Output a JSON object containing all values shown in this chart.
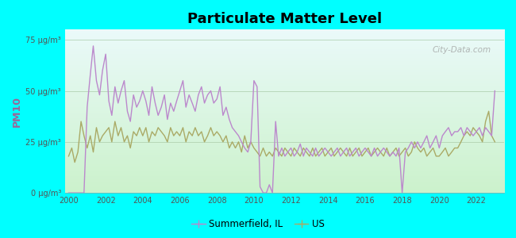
{
  "title": "Particulate Matter Level",
  "ylabel": "PM10",
  "background_color": "#00FFFF",
  "plot_bg_top": "#e8f8f8",
  "plot_bg_bottom": "#d8f0d0",
  "ylim": [
    0,
    80
  ],
  "yticks": [
    0,
    25,
    50,
    75
  ],
  "ytick_labels": [
    "0 μg/m³",
    "25 μg/m³",
    "50 μg/m³",
    "75 μg/m³"
  ],
  "xlim": [
    1999.8,
    2023.5
  ],
  "xticks": [
    2000,
    2002,
    2004,
    2006,
    2008,
    2010,
    2012,
    2014,
    2016,
    2018,
    2020,
    2022
  ],
  "color_summerfield": "#bb88cc",
  "color_us": "#aaaa66",
  "legend_label_summerfield": "Summerfield, IL",
  "legend_label_us": "US",
  "watermark": "City-Data.com",
  "summerfield_x": [
    2000.0,
    2000.17,
    2000.33,
    2000.5,
    2000.67,
    2000.83,
    2001.0,
    2001.17,
    2001.33,
    2001.5,
    2001.67,
    2001.83,
    2002.0,
    2002.17,
    2002.33,
    2002.5,
    2002.67,
    2002.83,
    2003.0,
    2003.17,
    2003.33,
    2003.5,
    2003.67,
    2003.83,
    2004.0,
    2004.17,
    2004.33,
    2004.5,
    2004.67,
    2004.83,
    2005.0,
    2005.17,
    2005.33,
    2005.5,
    2005.67,
    2005.83,
    2006.0,
    2006.17,
    2006.33,
    2006.5,
    2006.67,
    2006.83,
    2007.0,
    2007.17,
    2007.33,
    2007.5,
    2007.67,
    2007.83,
    2008.0,
    2008.17,
    2008.33,
    2008.5,
    2008.67,
    2008.83,
    2009.0,
    2009.17,
    2009.33,
    2009.5,
    2009.67,
    2009.83,
    2010.0,
    2010.17,
    2010.33,
    2010.5,
    2010.67,
    2010.83,
    2011.0,
    2011.17,
    2011.33,
    2011.5,
    2011.67,
    2011.83,
    2012.0,
    2012.17,
    2012.33,
    2012.5,
    2012.67,
    2012.83,
    2013.0,
    2013.17,
    2013.33,
    2013.5,
    2013.67,
    2013.83,
    2014.0,
    2014.17,
    2014.33,
    2014.5,
    2014.67,
    2014.83,
    2015.0,
    2015.17,
    2015.33,
    2015.5,
    2015.67,
    2015.83,
    2016.0,
    2016.17,
    2016.33,
    2016.5,
    2016.67,
    2016.83,
    2017.0,
    2017.17,
    2017.33,
    2017.5,
    2017.67,
    2017.83,
    2018.0,
    2018.17,
    2018.33,
    2018.5,
    2018.67,
    2018.83,
    2019.0,
    2019.17,
    2019.33,
    2019.5,
    2019.67,
    2019.83,
    2020.0,
    2020.17,
    2020.33,
    2020.5,
    2020.67,
    2020.83,
    2021.0,
    2021.17,
    2021.33,
    2021.5,
    2021.67,
    2021.83,
    2022.0,
    2022.17,
    2022.33,
    2022.5,
    2022.67,
    2022.83,
    2023.0
  ],
  "summerfield_y": [
    0,
    0,
    0,
    0,
    0,
    0,
    42,
    58,
    72,
    55,
    48,
    60,
    68,
    45,
    38,
    52,
    44,
    50,
    55,
    40,
    35,
    48,
    42,
    45,
    50,
    45,
    38,
    52,
    44,
    38,
    42,
    48,
    36,
    44,
    40,
    45,
    50,
    55,
    42,
    48,
    44,
    40,
    48,
    52,
    44,
    48,
    50,
    44,
    46,
    52,
    38,
    42,
    36,
    32,
    30,
    28,
    25,
    22,
    20,
    25,
    55,
    52,
    3,
    0,
    0,
    4,
    0,
    35,
    18,
    22,
    18,
    20,
    22,
    18,
    20,
    24,
    18,
    22,
    20,
    18,
    22,
    18,
    20,
    22,
    20,
    18,
    20,
    22,
    18,
    20,
    22,
    18,
    20,
    22,
    18,
    20,
    22,
    20,
    18,
    22,
    18,
    20,
    22,
    20,
    18,
    20,
    18,
    22,
    0,
    20,
    22,
    25,
    22,
    25,
    22,
    25,
    28,
    22,
    25,
    28,
    22,
    28,
    30,
    32,
    28,
    30,
    30,
    32,
    28,
    32,
    30,
    28,
    30,
    32,
    28,
    32,
    30,
    28,
    50
  ],
  "us_x": [
    2000.0,
    2000.17,
    2000.33,
    2000.5,
    2000.67,
    2000.83,
    2001.0,
    2001.17,
    2001.33,
    2001.5,
    2001.67,
    2001.83,
    2002.0,
    2002.17,
    2002.33,
    2002.5,
    2002.67,
    2002.83,
    2003.0,
    2003.17,
    2003.33,
    2003.5,
    2003.67,
    2003.83,
    2004.0,
    2004.17,
    2004.33,
    2004.5,
    2004.67,
    2004.83,
    2005.0,
    2005.17,
    2005.33,
    2005.5,
    2005.67,
    2005.83,
    2006.0,
    2006.17,
    2006.33,
    2006.5,
    2006.67,
    2006.83,
    2007.0,
    2007.17,
    2007.33,
    2007.5,
    2007.67,
    2007.83,
    2008.0,
    2008.17,
    2008.33,
    2008.5,
    2008.67,
    2008.83,
    2009.0,
    2009.17,
    2009.33,
    2009.5,
    2009.67,
    2009.83,
    2010.0,
    2010.17,
    2010.33,
    2010.5,
    2010.67,
    2010.83,
    2011.0,
    2011.17,
    2011.33,
    2011.5,
    2011.67,
    2011.83,
    2012.0,
    2012.17,
    2012.33,
    2012.5,
    2012.67,
    2012.83,
    2013.0,
    2013.17,
    2013.33,
    2013.5,
    2013.67,
    2013.83,
    2014.0,
    2014.17,
    2014.33,
    2014.5,
    2014.67,
    2014.83,
    2015.0,
    2015.17,
    2015.33,
    2015.5,
    2015.67,
    2015.83,
    2016.0,
    2016.17,
    2016.33,
    2016.5,
    2016.67,
    2016.83,
    2017.0,
    2017.17,
    2017.33,
    2017.5,
    2017.67,
    2017.83,
    2018.0,
    2018.17,
    2018.33,
    2018.5,
    2018.67,
    2018.83,
    2019.0,
    2019.17,
    2019.33,
    2019.5,
    2019.67,
    2019.83,
    2020.0,
    2020.17,
    2020.33,
    2020.5,
    2020.67,
    2020.83,
    2021.0,
    2021.17,
    2021.33,
    2021.5,
    2021.67,
    2021.83,
    2022.0,
    2022.17,
    2022.33,
    2022.5,
    2022.67,
    2022.83,
    2023.0
  ],
  "us_y": [
    18,
    22,
    15,
    20,
    35,
    28,
    22,
    28,
    20,
    32,
    25,
    28,
    30,
    32,
    25,
    35,
    28,
    32,
    25,
    28,
    22,
    30,
    28,
    32,
    28,
    32,
    25,
    30,
    28,
    32,
    30,
    28,
    25,
    32,
    28,
    30,
    28,
    32,
    25,
    30,
    28,
    32,
    28,
    30,
    25,
    28,
    32,
    28,
    30,
    28,
    25,
    28,
    22,
    25,
    22,
    25,
    20,
    28,
    22,
    25,
    22,
    20,
    18,
    22,
    18,
    20,
    18,
    22,
    20,
    18,
    22,
    20,
    18,
    22,
    20,
    18,
    22,
    20,
    18,
    22,
    18,
    20,
    22,
    18,
    20,
    22,
    18,
    20,
    22,
    20,
    18,
    22,
    18,
    20,
    22,
    18,
    20,
    22,
    18,
    20,
    22,
    20,
    18,
    22,
    18,
    20,
    22,
    18,
    20,
    22,
    18,
    20,
    25,
    22,
    20,
    22,
    18,
    20,
    22,
    18,
    18,
    20,
    22,
    18,
    20,
    22,
    22,
    25,
    28,
    30,
    28,
    32,
    30,
    28,
    25,
    35,
    40,
    28,
    25
  ]
}
